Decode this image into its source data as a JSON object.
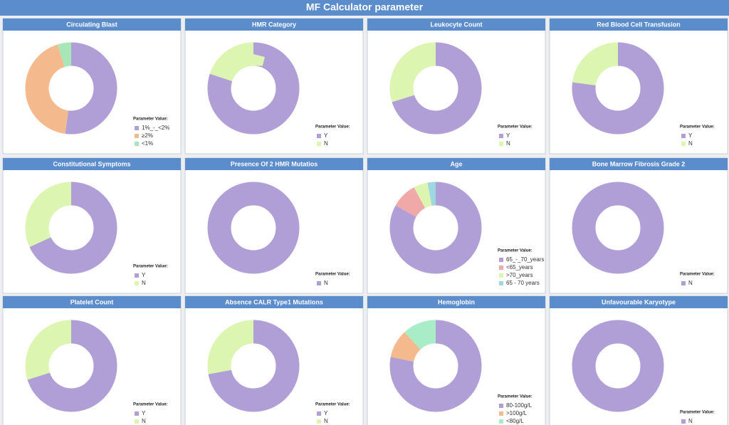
{
  "title": "MF Calculator parameter",
  "chart_data": [
    {
      "type": "pie",
      "title": "Circulating Blast",
      "legend_title": "Parameter Value:",
      "categories": [
        "1%_-_<2%",
        "≥2%",
        "<1%"
      ],
      "values": [
        52,
        43,
        5
      ],
      "colors": [
        "#b09fd6",
        "#f5b98e",
        "#a8e6b8"
      ]
    },
    {
      "type": "pie",
      "title": "HMR Category",
      "legend_title": "Parameter Value:",
      "categories": [
        "Y",
        "N"
      ],
      "values": [
        80,
        20
      ],
      "colors": [
        "#b09fd6",
        "#dcf5b0"
      ]
    },
    {
      "type": "pie",
      "title": "Leukocyte Count",
      "legend_title": "Parameter Value:",
      "categories": [
        "Y",
        "N"
      ],
      "values": [
        70,
        30
      ],
      "colors": [
        "#b09fd6",
        "#dcf5b0"
      ]
    },
    {
      "type": "pie",
      "title": "Red Blood Cell Transfusion",
      "legend_title": "Parameter Value:",
      "categories": [
        "Y",
        "N"
      ],
      "values": [
        77,
        23
      ],
      "colors": [
        "#b09fd6",
        "#dcf5b0"
      ]
    },
    {
      "type": "pie",
      "title": "Constitutional Symptoms",
      "legend_title": "Parameter Value:",
      "categories": [
        "Y",
        "N"
      ],
      "values": [
        68,
        32
      ],
      "colors": [
        "#b09fd6",
        "#dcf5b0"
      ]
    },
    {
      "type": "pie",
      "title": "Presence Of 2 HMR Mutatios",
      "legend_title": "Parameter Value:",
      "categories": [
        "N"
      ],
      "values": [
        100
      ],
      "colors": [
        "#b09fd6"
      ]
    },
    {
      "type": "pie",
      "title": "Age",
      "legend_title": "Parameter Value:",
      "categories": [
        "65_-_70_years",
        "<65_years",
        ">70_years",
        "65 - 70 years"
      ],
      "values": [
        83,
        9,
        5,
        3
      ],
      "colors": [
        "#b09fd6",
        "#f0a8a8",
        "#dcf5b0",
        "#9fd8e0"
      ]
    },
    {
      "type": "pie",
      "title": "Bone Marrow Fibrosis Grade 2",
      "legend_title": "Parameter Value:",
      "categories": [
        "N"
      ],
      "values": [
        100
      ],
      "colors": [
        "#b09fd6"
      ]
    },
    {
      "type": "pie",
      "title": "Platelet Count",
      "legend_title": "Parameter Value:",
      "categories": [
        "Y",
        "N"
      ],
      "values": [
        70,
        30
      ],
      "colors": [
        "#b09fd6",
        "#dcf5b0"
      ]
    },
    {
      "type": "pie",
      "title": "Absence CALR Type1 Mutations",
      "legend_title": "Parameter Value:",
      "categories": [
        "Y",
        "N"
      ],
      "values": [
        72,
        28
      ],
      "colors": [
        "#b09fd6",
        "#dcf5b0"
      ]
    },
    {
      "type": "pie",
      "title": "Hemoglobin",
      "legend_title": "Parameter Value:",
      "categories": [
        "80-100g/L",
        ">100g/L",
        "<80g/L"
      ],
      "values": [
        78,
        10,
        12
      ],
      "colors": [
        "#b09fd6",
        "#f5b98e",
        "#a8ecc8"
      ]
    },
    {
      "type": "pie",
      "title": "Unfavourable Karyotype",
      "legend_title": "Parameter Value:",
      "categories": [
        "N"
      ],
      "values": [
        100
      ],
      "colors": [
        "#b09fd6"
      ]
    }
  ]
}
